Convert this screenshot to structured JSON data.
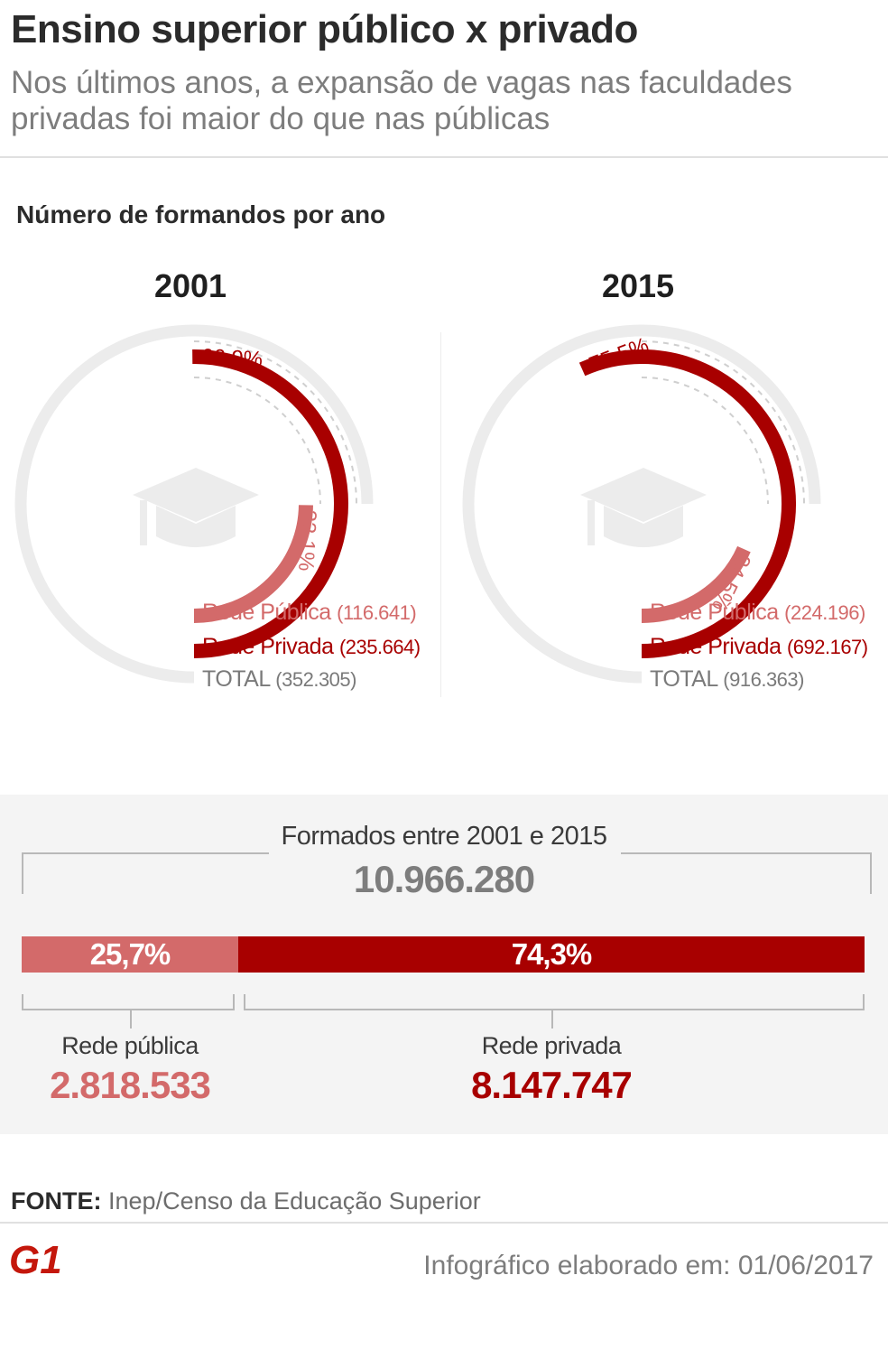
{
  "title": "Ensino superior público x privado",
  "subtitle": "Nos últimos anos, a expansão de vagas nas faculdades privadas foi maior do que nas públicas",
  "chart_data": [
    {
      "type": "radial-bar",
      "title": "Número de formandos por ano",
      "subtitle": "2001",
      "series": [
        {
          "name": "Rede Pública",
          "value": 116641,
          "value_label": "(116.641)",
          "percent": 33.1,
          "percent_label": "33,1%",
          "color": "#d36a6a"
        },
        {
          "name": "Rede Privada",
          "value": 235664,
          "value_label": "(235.664)",
          "percent": 66.9,
          "percent_label": "66,9%",
          "color": "#a80000"
        }
      ],
      "total": {
        "name": "TOTAL",
        "value": 352305,
        "value_label": "(352.305)"
      }
    },
    {
      "type": "radial-bar",
      "title": "Número de formandos por ano",
      "subtitle": "2015",
      "series": [
        {
          "name": "Rede Pública",
          "value": 224196,
          "value_label": "(224.196)",
          "percent": 24.5,
          "percent_label": "24,5%",
          "color": "#d36a6a"
        },
        {
          "name": "Rede Privada",
          "value": 692167,
          "value_label": "(692.167)",
          "percent": 75.5,
          "percent_label": "75,5%",
          "color": "#a80000"
        }
      ],
      "total": {
        "name": "TOTAL",
        "value": 916363,
        "value_label": "(916.363)"
      }
    },
    {
      "type": "bar",
      "stacked": true,
      "title": "Formados entre 2001 e 2015",
      "total_label": "10.966.280",
      "total": 10966280,
      "series": [
        {
          "name": "Rede pública",
          "value": 2818533,
          "value_label": "2.818.533",
          "percent": 25.7,
          "percent_label": "25,7%",
          "color": "#d36a6a"
        },
        {
          "name": "Rede privada",
          "value": 8147747,
          "value_label": "8.147.747",
          "percent": 74.3,
          "percent_label": "74,3%",
          "color": "#a80000"
        }
      ]
    }
  ],
  "source": {
    "label": "FONTE:",
    "text": "Inep/Censo da Educação Superior"
  },
  "footer": {
    "logo_text": "G1",
    "credit": "Infográfico elaborado em: 01/06/2017"
  },
  "icons": {
    "cap": "graduation-cap-icon",
    "logo": "g1-logo"
  },
  "colors": {
    "public": "#d36a6a",
    "private": "#a80000",
    "track": "#ececec",
    "dashed": "#cfcfcf",
    "cap": "#ececec"
  }
}
